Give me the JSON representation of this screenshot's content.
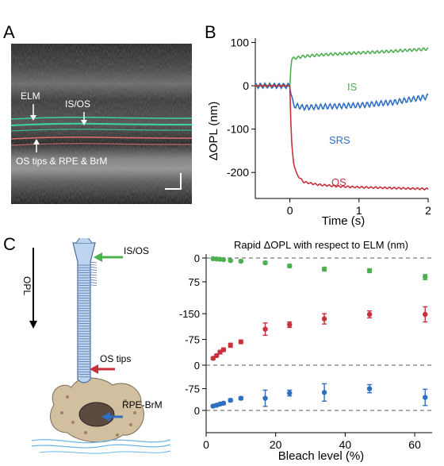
{
  "panels": {
    "a": "A",
    "b": "B",
    "c": "C"
  },
  "oct_labels": {
    "elm": "ELM",
    "isos": "IS/OS",
    "bottom": "OS tips & RPE & BrM"
  },
  "colors": {
    "is": "#4caf50",
    "srs": "#2f6fc0",
    "os": "#c8303c",
    "oct_green": "#3ad6a0",
    "oct_red": "#e07070"
  },
  "chart_data": [
    {
      "type": "line",
      "ylabel": "ΔOPL (nm)",
      "xlabel": "Time (s)",
      "xlim": [
        -0.5,
        2
      ],
      "ylim": [
        -260,
        110
      ],
      "xticks": [
        0,
        1,
        2
      ],
      "yticks": [
        100,
        0,
        -100,
        -200
      ],
      "series": [
        {
          "name": "IS",
          "x": [
            -0.5,
            0,
            0.02,
            0.2,
            0.5,
            1.0,
            1.5,
            2.0
          ],
          "y": [
            0,
            0,
            62,
            68,
            72,
            76,
            80,
            85
          ]
        },
        {
          "name": "SRS",
          "x": [
            -0.5,
            0,
            0.05,
            0.2,
            0.5,
            1.0,
            1.5,
            2.0
          ],
          "y": [
            0,
            0,
            -45,
            -50,
            -48,
            -45,
            -38,
            -25
          ]
        },
        {
          "name": "OS",
          "x": [
            -0.5,
            0,
            0.02,
            0.05,
            0.1,
            0.2,
            0.4,
            0.7,
            1.0,
            1.5,
            2.0
          ],
          "y": [
            0,
            0,
            -120,
            -175,
            -205,
            -222,
            -228,
            -232,
            -234,
            -236,
            -238
          ]
        }
      ]
    },
    {
      "type": "scatter",
      "title": "Rapid ΔOPL with respect to ELM (nm)",
      "xlabel": "Bleach level (%)",
      "xlim": [
        0,
        65
      ],
      "xticks": [
        0,
        20,
        40,
        60
      ],
      "subplots": [
        {
          "name": "IS",
          "yticks": [
            "0",
            "75"
          ],
          "ylim": [
            0,
            75
          ],
          "x": [
            2,
            3,
            4,
            5,
            7,
            10,
            17,
            24,
            34,
            47,
            63
          ],
          "y": [
            2,
            3,
            4,
            5,
            8,
            10,
            15,
            25,
            35,
            40,
            60
          ],
          "err": [
            2,
            2,
            2,
            2,
            3,
            3,
            4,
            5,
            6,
            6,
            8
          ]
        },
        {
          "name": "OS",
          "yticks": [
            "-150",
            "-75",
            "0"
          ],
          "ylim": [
            -185,
            0
          ],
          "x": [
            2,
            3,
            4,
            5,
            7,
            10,
            17,
            24,
            34,
            47,
            63
          ],
          "y": [
            -20,
            -28,
            -38,
            -45,
            -58,
            -68,
            -105,
            -118,
            -135,
            -148,
            -148
          ],
          "err": [
            4,
            4,
            5,
            5,
            6,
            5,
            18,
            8,
            15,
            10,
            22
          ]
        },
        {
          "name": "SRS",
          "yticks": [
            "-75",
            "0"
          ],
          "ylim": [
            -115,
            0
          ],
          "x": [
            2,
            3,
            4,
            5,
            7,
            10,
            17,
            24,
            34,
            47,
            63
          ],
          "y": [
            -15,
            -18,
            -22,
            -25,
            -35,
            -42,
            -42,
            -60,
            -62,
            -75,
            -45
          ],
          "err": [
            4,
            4,
            4,
            4,
            5,
            5,
            28,
            10,
            30,
            14,
            28
          ]
        }
      ]
    }
  ],
  "diagram_labels": {
    "opl": "OPL",
    "isos": "IS/OS",
    "ostips": "OS tips",
    "rpebrm": "RPE-BrM"
  }
}
